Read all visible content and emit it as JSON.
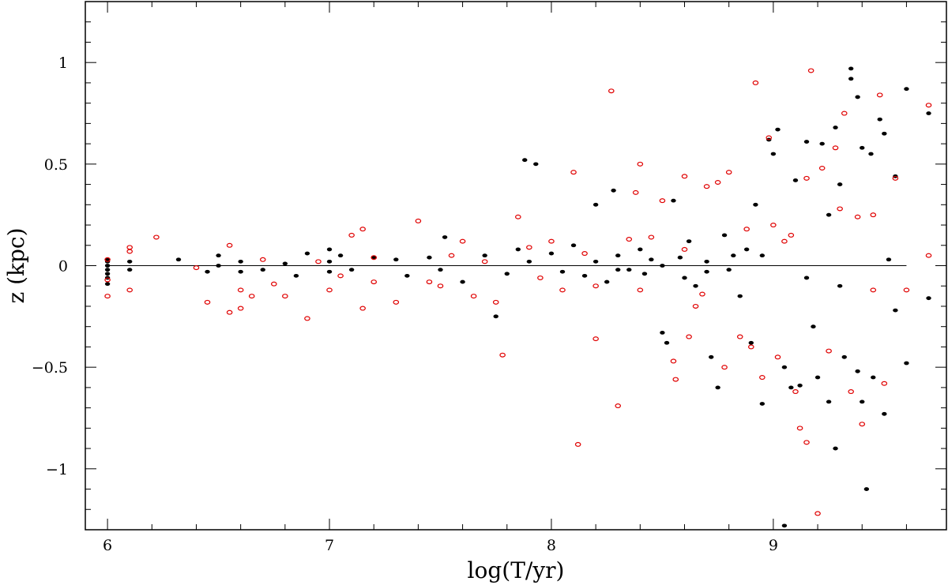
{
  "chart_data": {
    "type": "scatter",
    "title": "",
    "xlabel": "log(T/yr)",
    "ylabel": "z (kpc)",
    "xlim": [
      5.9,
      9.78
    ],
    "ylim": [
      -1.3,
      1.3
    ],
    "grid": false,
    "x_ticks": [
      {
        "value": 6,
        "label": "6"
      },
      {
        "value": 7,
        "label": "7"
      },
      {
        "value": 8,
        "label": "8"
      },
      {
        "value": 9,
        "label": "9"
      }
    ],
    "y_ticks": [
      {
        "value": 1,
        "label": "1"
      },
      {
        "value": 0.5,
        "label": "0.5"
      },
      {
        "value": 0,
        "label": "0"
      },
      {
        "value": -0.5,
        "label": "−0.5"
      },
      {
        "value": -1,
        "label": "−1"
      }
    ],
    "reference_line": {
      "y": 0,
      "x_from": 6.0,
      "x_to": 9.6
    },
    "colors": {
      "filled": "#000000",
      "open": "#e00000"
    },
    "series": [
      {
        "marker": "filled-dot",
        "points": [
          [
            6.0,
            0.02
          ],
          [
            6.0,
            0.0
          ],
          [
            6.0,
            -0.02
          ],
          [
            6.0,
            -0.04
          ],
          [
            6.0,
            -0.06
          ],
          [
            6.0,
            -0.09
          ],
          [
            6.0,
            0.03
          ],
          [
            6.1,
            0.02
          ],
          [
            6.1,
            -0.02
          ],
          [
            6.32,
            0.03
          ],
          [
            6.45,
            -0.03
          ],
          [
            6.5,
            0.05
          ],
          [
            6.5,
            0.0
          ],
          [
            6.6,
            0.02
          ],
          [
            6.6,
            -0.03
          ],
          [
            6.7,
            -0.02
          ],
          [
            6.8,
            0.01
          ],
          [
            6.85,
            -0.05
          ],
          [
            6.9,
            0.06
          ],
          [
            7.0,
            0.08
          ],
          [
            7.0,
            0.02
          ],
          [
            7.0,
            -0.03
          ],
          [
            7.05,
            0.05
          ],
          [
            7.1,
            -0.02
          ],
          [
            7.2,
            0.04
          ],
          [
            7.3,
            0.03
          ],
          [
            7.35,
            -0.05
          ],
          [
            7.45,
            0.04
          ],
          [
            7.5,
            -0.02
          ],
          [
            7.52,
            0.14
          ],
          [
            7.6,
            -0.08
          ],
          [
            7.7,
            0.05
          ],
          [
            7.75,
            -0.25
          ],
          [
            7.8,
            -0.04
          ],
          [
            7.85,
            0.08
          ],
          [
            7.88,
            0.52
          ],
          [
            7.93,
            0.5
          ],
          [
            7.9,
            0.02
          ],
          [
            8.0,
            0.06
          ],
          [
            8.05,
            -0.03
          ],
          [
            8.1,
            0.1
          ],
          [
            8.15,
            -0.05
          ],
          [
            8.2,
            0.3
          ],
          [
            8.2,
            0.02
          ],
          [
            8.25,
            -0.08
          ],
          [
            8.28,
            0.37
          ],
          [
            8.3,
            0.05
          ],
          [
            8.35,
            -0.02
          ],
          [
            8.4,
            0.08
          ],
          [
            8.42,
            -0.04
          ],
          [
            8.45,
            0.03
          ],
          [
            8.5,
            -0.33
          ],
          [
            8.52,
            -0.38
          ],
          [
            8.55,
            0.32
          ],
          [
            8.58,
            0.04
          ],
          [
            8.6,
            -0.06
          ],
          [
            8.62,
            0.12
          ],
          [
            8.65,
            -0.1
          ],
          [
            8.7,
            0.02
          ],
          [
            8.72,
            -0.45
          ],
          [
            8.75,
            -0.6
          ],
          [
            8.78,
            0.15
          ],
          [
            8.8,
            -0.02
          ],
          [
            8.82,
            0.05
          ],
          [
            8.85,
            -0.15
          ],
          [
            8.88,
            0.08
          ],
          [
            8.9,
            -0.38
          ],
          [
            8.92,
            0.3
          ],
          [
            8.95,
            -0.68
          ],
          [
            8.98,
            0.62
          ],
          [
            9.0,
            0.55
          ],
          [
            9.02,
            0.67
          ],
          [
            9.05,
            -0.5
          ],
          [
            9.08,
            -0.6
          ],
          [
            9.1,
            0.42
          ],
          [
            9.12,
            -0.59
          ],
          [
            9.15,
            0.61
          ],
          [
            9.18,
            -0.3
          ],
          [
            9.2,
            -0.55
          ],
          [
            9.22,
            0.6
          ],
          [
            9.25,
            -0.67
          ],
          [
            9.28,
            0.68
          ],
          [
            9.28,
            -0.9
          ],
          [
            9.3,
            0.4
          ],
          [
            9.32,
            -0.45
          ],
          [
            9.35,
            0.97
          ],
          [
            9.35,
            0.92
          ],
          [
            9.38,
            0.83
          ],
          [
            9.38,
            -0.52
          ],
          [
            9.4,
            0.58
          ],
          [
            9.4,
            -0.67
          ],
          [
            9.42,
            -1.1
          ],
          [
            9.44,
            0.55
          ],
          [
            9.45,
            -0.55
          ],
          [
            9.48,
            0.72
          ],
          [
            9.5,
            0.65
          ],
          [
            9.5,
            -0.73
          ],
          [
            9.52,
            0.03
          ],
          [
            9.55,
            0.44
          ],
          [
            9.55,
            -0.22
          ],
          [
            9.6,
            0.87
          ],
          [
            9.6,
            -0.48
          ],
          [
            9.7,
            0.75
          ],
          [
            9.7,
            -0.16
          ],
          [
            9.05,
            -1.28
          ],
          [
            9.15,
            -0.06
          ],
          [
            9.25,
            0.25
          ],
          [
            9.3,
            -0.1
          ],
          [
            8.95,
            0.05
          ],
          [
            8.7,
            -0.03
          ],
          [
            8.5,
            0.0
          ],
          [
            8.3,
            -0.02
          ]
        ]
      },
      {
        "marker": "open-circle",
        "points": [
          [
            6.0,
            0.03
          ],
          [
            6.0,
            -0.07
          ],
          [
            6.0,
            -0.15
          ],
          [
            6.1,
            0.09
          ],
          [
            6.1,
            0.07
          ],
          [
            6.1,
            -0.12
          ],
          [
            6.22,
            0.14
          ],
          [
            6.4,
            -0.01
          ],
          [
            6.45,
            -0.18
          ],
          [
            6.55,
            0.1
          ],
          [
            6.55,
            -0.23
          ],
          [
            6.6,
            -0.12
          ],
          [
            6.6,
            -0.21
          ],
          [
            6.65,
            -0.15
          ],
          [
            6.75,
            -0.09
          ],
          [
            6.8,
            -0.15
          ],
          [
            6.9,
            -0.26
          ],
          [
            7.0,
            -0.12
          ],
          [
            7.05,
            -0.05
          ],
          [
            7.1,
            0.15
          ],
          [
            7.15,
            0.18
          ],
          [
            7.15,
            -0.21
          ],
          [
            7.2,
            -0.08
          ],
          [
            7.3,
            -0.18
          ],
          [
            7.4,
            0.22
          ],
          [
            7.45,
            -0.08
          ],
          [
            7.55,
            0.05
          ],
          [
            7.6,
            0.12
          ],
          [
            7.65,
            -0.15
          ],
          [
            7.75,
            -0.18
          ],
          [
            7.78,
            -0.44
          ],
          [
            7.85,
            0.24
          ],
          [
            7.9,
            0.09
          ],
          [
            8.0,
            0.12
          ],
          [
            8.05,
            -0.12
          ],
          [
            8.1,
            0.46
          ],
          [
            8.12,
            -0.88
          ],
          [
            8.2,
            -0.36
          ],
          [
            8.2,
            -0.1
          ],
          [
            8.27,
            0.86
          ],
          [
            8.3,
            -0.69
          ],
          [
            8.35,
            0.13
          ],
          [
            8.38,
            0.36
          ],
          [
            8.4,
            0.5
          ],
          [
            8.45,
            0.14
          ],
          [
            8.5,
            0.32
          ],
          [
            8.55,
            -0.47
          ],
          [
            8.56,
            -0.56
          ],
          [
            8.6,
            0.44
          ],
          [
            8.62,
            -0.35
          ],
          [
            8.65,
            -0.2
          ],
          [
            8.7,
            0.39
          ],
          [
            8.75,
            0.41
          ],
          [
            8.78,
            -0.5
          ],
          [
            8.8,
            0.46
          ],
          [
            8.85,
            -0.35
          ],
          [
            8.9,
            -0.4
          ],
          [
            8.92,
            0.9
          ],
          [
            8.95,
            -0.55
          ],
          [
            8.98,
            0.63
          ],
          [
            9.0,
            0.2
          ],
          [
            9.02,
            -0.45
          ],
          [
            9.05,
            0.12
          ],
          [
            9.1,
            -0.62
          ],
          [
            9.12,
            -0.8
          ],
          [
            9.15,
            0.43
          ],
          [
            9.15,
            -0.87
          ],
          [
            9.17,
            0.96
          ],
          [
            9.2,
            -1.22
          ],
          [
            9.22,
            0.48
          ],
          [
            9.25,
            -0.42
          ],
          [
            9.28,
            0.58
          ],
          [
            9.3,
            0.28
          ],
          [
            9.32,
            0.75
          ],
          [
            9.35,
            -0.62
          ],
          [
            9.38,
            0.24
          ],
          [
            9.4,
            -0.78
          ],
          [
            9.45,
            0.25
          ],
          [
            9.45,
            -0.12
          ],
          [
            9.48,
            0.84
          ],
          [
            9.5,
            -0.58
          ],
          [
            9.55,
            0.43
          ],
          [
            9.6,
            -0.12
          ],
          [
            9.7,
            0.79
          ],
          [
            9.7,
            0.05
          ],
          [
            8.6,
            0.08
          ],
          [
            8.4,
            -0.12
          ],
          [
            8.15,
            0.06
          ],
          [
            7.95,
            -0.06
          ],
          [
            7.7,
            0.02
          ],
          [
            7.5,
            -0.1
          ],
          [
            7.2,
            0.04
          ],
          [
            6.95,
            0.02
          ],
          [
            6.7,
            0.03
          ],
          [
            9.08,
            0.15
          ],
          [
            8.88,
            0.18
          ],
          [
            8.68,
            -0.14
          ]
        ]
      }
    ]
  }
}
